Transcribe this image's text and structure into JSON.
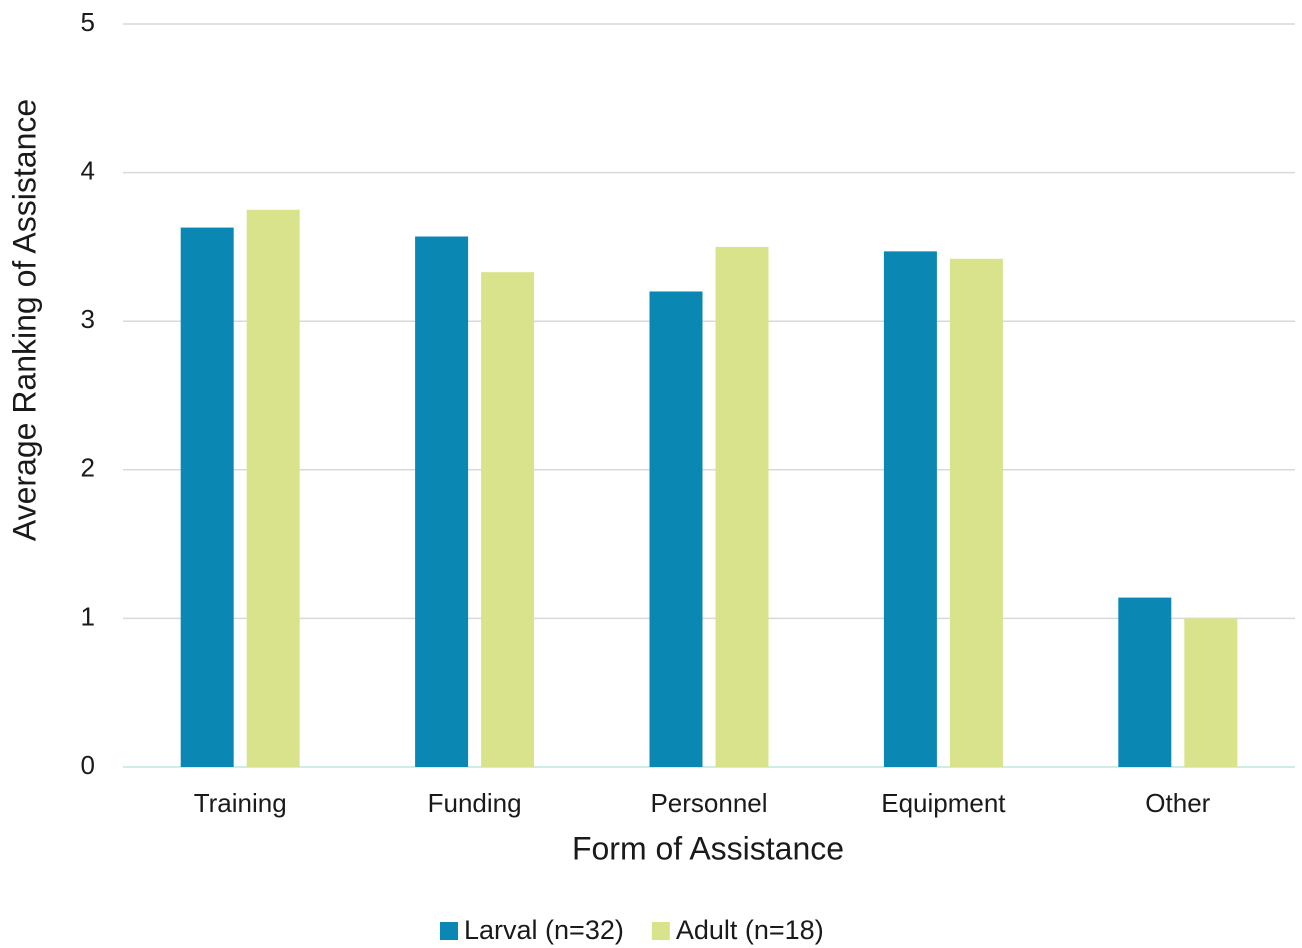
{
  "chart_data": {
    "type": "bar",
    "x_label": "Form of Assistance",
    "y_label": "Average Ranking of Assistance",
    "categories": [
      "Training",
      "Funding",
      "Personnel",
      "Equipment",
      "Other"
    ],
    "series": [
      {
        "name": "Larval (n=32)",
        "color": "#0b87b3",
        "values": [
          3.63,
          3.57,
          3.2,
          3.47,
          1.14
        ]
      },
      {
        "name": "Adult (n=18)",
        "color": "#d9e38c",
        "values": [
          3.75,
          3.33,
          3.5,
          3.42,
          1.0
        ]
      }
    ],
    "ylim": [
      0,
      5
    ],
    "yticks": [
      0,
      1,
      2,
      3,
      4,
      5
    ],
    "grid": true,
    "legend": "bottom"
  }
}
